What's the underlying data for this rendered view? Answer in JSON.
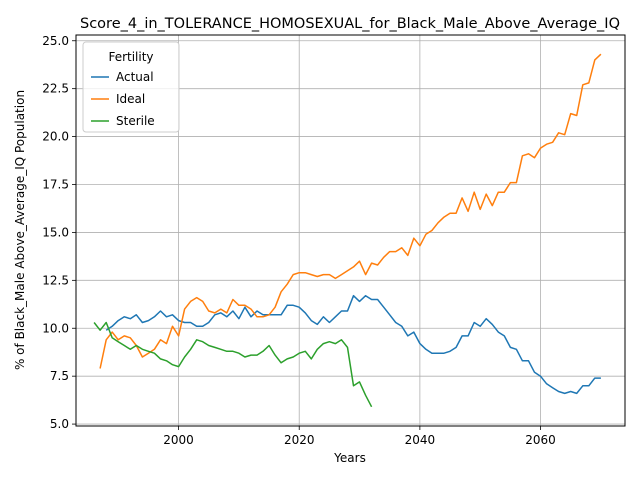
{
  "chart_data": {
    "type": "line",
    "title": "Score_4_in_TOLERANCE_HOMOSEXUAL_for_Black_Male_Above_Average_IQ",
    "xlabel": "Years",
    "ylabel": "% of Black_Male Above_Average_IQ Population",
    "xlim": [
      1983,
      2074
    ],
    "ylim": [
      4.9,
      25.3
    ],
    "xticks": [
      2000,
      2020,
      2040,
      2060
    ],
    "xtick_labels": [
      "2000",
      "2020",
      "2040",
      "2060"
    ],
    "yticks": [
      5.0,
      7.5,
      10.0,
      12.5,
      15.0,
      17.5,
      20.0,
      22.5,
      25.0
    ],
    "ytick_labels": [
      "5.0",
      "7.5",
      "10.0",
      "12.5",
      "15.0",
      "17.5",
      "20.0",
      "22.5",
      "25.0"
    ],
    "grid": true,
    "legend": {
      "title": "Fertility",
      "placement": "top-left"
    },
    "series": [
      {
        "name": "Actual",
        "color": "#1f77b4",
        "x": [
          1988,
          1989,
          1990,
          1991,
          1992,
          1993,
          1994,
          1995,
          1996,
          1997,
          1998,
          1999,
          2000,
          2001,
          2002,
          2003,
          2004,
          2005,
          2006,
          2007,
          2008,
          2009,
          2010,
          2011,
          2012,
          2013,
          2014,
          2015,
          2016,
          2017,
          2018,
          2019,
          2020,
          2021,
          2022,
          2023,
          2024,
          2025,
          2026,
          2027,
          2028,
          2029,
          2030,
          2031,
          2032,
          2033,
          2034,
          2035,
          2036,
          2037,
          2038,
          2039,
          2040,
          2041,
          2042,
          2043,
          2044,
          2045,
          2046,
          2047,
          2048,
          2049,
          2050,
          2051,
          2052,
          2053,
          2054,
          2055,
          2056,
          2057,
          2058,
          2059,
          2060,
          2061,
          2062,
          2063,
          2064,
          2065,
          2066,
          2067,
          2068,
          2069,
          2070
        ],
        "values": [
          9.9,
          10.1,
          10.4,
          10.6,
          10.5,
          10.7,
          10.3,
          10.4,
          10.6,
          10.9,
          10.6,
          10.7,
          10.4,
          10.3,
          10.3,
          10.1,
          10.1,
          10.3,
          10.7,
          10.8,
          10.6,
          10.9,
          10.5,
          11.1,
          10.6,
          10.9,
          10.7,
          10.7,
          10.7,
          10.7,
          11.2,
          11.2,
          11.1,
          10.8,
          10.4,
          10.2,
          10.6,
          10.3,
          10.6,
          10.9,
          10.9,
          11.7,
          11.4,
          11.7,
          11.5,
          11.5,
          11.1,
          10.7,
          10.3,
          10.1,
          9.6,
          9.8,
          9.2,
          8.9,
          8.7,
          8.7,
          8.7,
          8.8,
          9.0,
          9.6,
          9.6,
          10.3,
          10.1,
          10.5,
          10.2,
          9.8,
          9.6,
          9.0,
          8.9,
          8.3,
          8.3,
          7.7,
          7.5,
          7.1,
          6.9,
          6.7,
          6.6,
          6.7,
          6.6,
          7.0,
          7.0,
          7.4,
          7.4
        ]
      },
      {
        "name": "Ideal",
        "color": "#ff7f0e",
        "x": [
          1987,
          1988,
          1989,
          1990,
          1991,
          1992,
          1993,
          1994,
          1995,
          1996,
          1997,
          1998,
          1999,
          2000,
          2001,
          2002,
          2003,
          2004,
          2005,
          2006,
          2007,
          2008,
          2009,
          2010,
          2011,
          2012,
          2013,
          2014,
          2015,
          2016,
          2017,
          2018,
          2019,
          2020,
          2021,
          2022,
          2023,
          2024,
          2025,
          2026,
          2027,
          2028,
          2029,
          2030,
          2031,
          2032,
          2033,
          2034,
          2035,
          2036,
          2037,
          2038,
          2039,
          2040,
          2041,
          2042,
          2043,
          2044,
          2045,
          2046,
          2047,
          2048,
          2049,
          2050,
          2051,
          2052,
          2053,
          2054,
          2055,
          2056,
          2057,
          2058,
          2059,
          2060,
          2061,
          2062,
          2063,
          2064,
          2065,
          2066,
          2067,
          2068,
          2069,
          2070
        ],
        "values": [
          7.9,
          9.4,
          9.8,
          9.4,
          9.6,
          9.5,
          9.1,
          8.5,
          8.7,
          8.9,
          9.4,
          9.2,
          10.1,
          9.6,
          11.0,
          11.4,
          11.6,
          11.4,
          10.9,
          10.8,
          11.0,
          10.8,
          11.5,
          11.2,
          11.2,
          11.0,
          10.6,
          10.6,
          10.7,
          11.1,
          11.9,
          12.3,
          12.8,
          12.9,
          12.9,
          12.8,
          12.7,
          12.8,
          12.8,
          12.6,
          12.8,
          13.0,
          13.2,
          13.5,
          12.8,
          13.4,
          13.3,
          13.7,
          14.0,
          14.0,
          14.2,
          13.8,
          14.7,
          14.3,
          14.9,
          15.1,
          15.5,
          15.8,
          16.0,
          16.0,
          16.8,
          16.1,
          17.1,
          16.2,
          17.0,
          16.4,
          17.1,
          17.1,
          17.6,
          17.6,
          19.0,
          19.1,
          18.9,
          19.4,
          19.6,
          19.7,
          20.2,
          20.1,
          21.2,
          21.1,
          22.7,
          22.8,
          24.0,
          24.3
        ]
      },
      {
        "name": "Sterile",
        "color": "#2ca02c",
        "x": [
          1986,
          1987,
          1988,
          1989,
          1990,
          1991,
          1992,
          1993,
          1994,
          1995,
          1996,
          1997,
          1998,
          1999,
          2000,
          2001,
          2002,
          2003,
          2004,
          2005,
          2006,
          2007,
          2008,
          2009,
          2010,
          2011,
          2012,
          2013,
          2014,
          2015,
          2016,
          2017,
          2018,
          2019,
          2020,
          2021,
          2022,
          2023,
          2024,
          2025,
          2026,
          2027,
          2028,
          2029,
          2030,
          2031,
          2032
        ],
        "values": [
          10.3,
          9.9,
          10.3,
          9.5,
          9.3,
          9.1,
          8.9,
          9.1,
          8.9,
          8.8,
          8.7,
          8.4,
          8.3,
          8.1,
          8.0,
          8.5,
          8.9,
          9.4,
          9.3,
          9.1,
          9.0,
          8.9,
          8.8,
          8.8,
          8.7,
          8.5,
          8.6,
          8.6,
          8.8,
          9.1,
          8.6,
          8.2,
          8.4,
          8.5,
          8.7,
          8.8,
          8.4,
          8.9,
          9.2,
          9.3,
          9.2,
          9.4,
          9.0,
          7.0,
          7.2,
          6.5,
          5.9
        ]
      }
    ]
  }
}
